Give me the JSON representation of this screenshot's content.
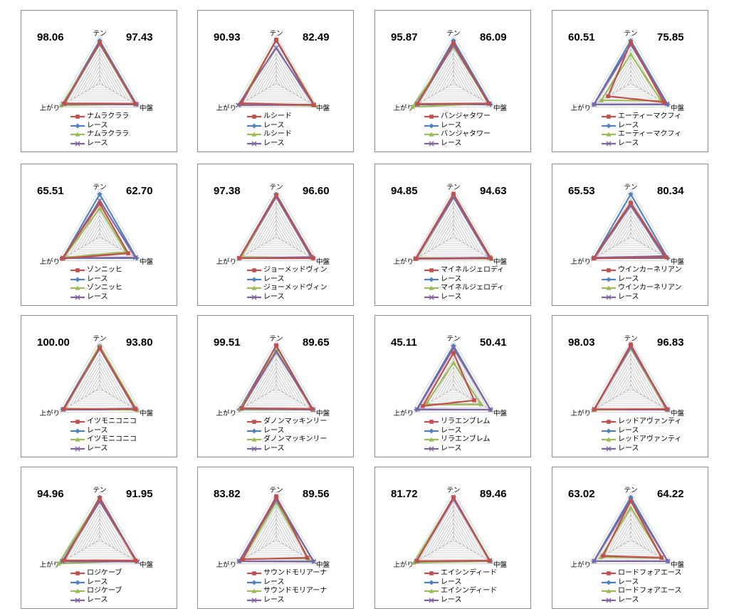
{
  "legend_colors": [
    "#c0504d",
    "#4f81bd",
    "#9bbb59",
    "#8064a2"
  ],
  "chart_data": [
    {
      "type": "radar",
      "axes": [
        "テン",
        "中盤",
        "上がり"
      ],
      "score_left": "98.06",
      "score_right": "97.43",
      "legend": [
        "ナムラクララ",
        "レース",
        "ナムラクララ",
        "レース"
      ],
      "series": [
        {
          "name": "ナムラクララ",
          "values": [
            9.6,
            9.6,
            9.5
          ]
        },
        {
          "name": "レース",
          "values": [
            10,
            10,
            10
          ]
        },
        {
          "name": "ナムラクララ",
          "values": [
            9.1,
            9.7,
            10.4
          ]
        },
        {
          "name": "レース",
          "values": [
            9.3,
            9.9,
            9.8
          ]
        }
      ]
    },
    {
      "type": "radar",
      "axes": [
        "テン",
        "中盤",
        "上がり"
      ],
      "score_left": "90.93",
      "score_right": "82.49",
      "legend": [
        "ルシード",
        "レース",
        "ルシード",
        "レース"
      ],
      "series": [
        {
          "name": "ルシード",
          "values": [
            10.2,
            10.2,
            9.4
          ]
        },
        {
          "name": "レース",
          "values": [
            10,
            10,
            10
          ]
        },
        {
          "name": "ルシード",
          "values": [
            10.2,
            10.5,
            10.0
          ]
        },
        {
          "name": "レース",
          "values": [
            8.3,
            10.1,
            10.3
          ]
        }
      ]
    },
    {
      "type": "radar",
      "axes": [
        "テン",
        "中盤",
        "上がり"
      ],
      "score_left": "95.87",
      "score_right": "86.09",
      "legend": [
        "バンジャタワー",
        "レース",
        "バンジャタワー",
        "レース"
      ],
      "series": [
        {
          "name": "バンジャタワー",
          "values": [
            9.4,
            9.5,
            9.7
          ]
        },
        {
          "name": "レース",
          "values": [
            10,
            10,
            10
          ]
        },
        {
          "name": "バンジャタワー",
          "values": [
            8.6,
            9.5,
            11.1
          ]
        },
        {
          "name": "レース",
          "values": [
            8.9,
            9.7,
            9.8
          ]
        }
      ]
    },
    {
      "type": "radar",
      "axes": [
        "テン",
        "中盤",
        "上がり"
      ],
      "score_left": "60.51",
      "score_right": "75.85",
      "legend": [
        "エーティーマクフィ",
        "レース",
        "エーティーマクフィ",
        "レース"
      ],
      "series": [
        {
          "name": "エーティーマクフィ",
          "values": [
            9.6,
            8.9,
            6.1
          ]
        },
        {
          "name": "レース",
          "values": [
            10,
            10,
            10
          ]
        },
        {
          "name": "エーティーマクフィ",
          "values": [
            6.8,
            8.2,
            8.0
          ]
        },
        {
          "name": "レース",
          "values": [
            9.1,
            9.8,
            9.9
          ]
        }
      ]
    },
    {
      "type": "radar",
      "axes": [
        "テン",
        "中盤",
        "上がり"
      ],
      "score_left": "65.51",
      "score_right": "62.70",
      "legend": [
        "ゾンニッヒ",
        "レース",
        "ゾンニッヒ",
        "レース"
      ],
      "series": [
        {
          "name": "ゾンニッヒ",
          "values": [
            7.8,
            7.7,
            10.2
          ]
        },
        {
          "name": "レース",
          "values": [
            10,
            10,
            10
          ]
        },
        {
          "name": "ゾンニッヒ",
          "values": [
            6.7,
            7.1,
            9.7
          ]
        },
        {
          "name": "レース",
          "values": [
            8.5,
            9.7,
            9.9
          ]
        }
      ]
    },
    {
      "type": "radar",
      "axes": [
        "テン",
        "中盤",
        "上がり"
      ],
      "score_left": "97.38",
      "score_right": "96.60",
      "legend": [
        "ジョーメッドヴィン",
        "レース",
        "ジョーメッドヴィン",
        "レース"
      ],
      "series": [
        {
          "name": "ジョーメッドヴィン",
          "values": [
            9.8,
            10.0,
            10.0
          ]
        },
        {
          "name": "レース",
          "values": [
            10,
            10,
            10
          ]
        },
        {
          "name": "ジョーメッドヴィン",
          "values": [
            9.6,
            9.9,
            9.5
          ]
        },
        {
          "name": "レース",
          "values": [
            9.4,
            9.5,
            10.0
          ]
        }
      ]
    },
    {
      "type": "radar",
      "axes": [
        "テン",
        "中盤",
        "上がり"
      ],
      "score_left": "94.85",
      "score_right": "94.63",
      "legend": [
        "マイネルジェロディ",
        "レース",
        "マイネルジェロディ",
        "レース"
      ],
      "series": [
        {
          "name": "マイネルジェロディ",
          "values": [
            10.1,
            10.1,
            10.3
          ]
        },
        {
          "name": "レース",
          "values": [
            10,
            10,
            10
          ]
        },
        {
          "name": "マイネルジェロディ",
          "values": [
            9.5,
            10.3,
            9.8
          ]
        },
        {
          "name": "レース",
          "values": [
            9.3,
            9.7,
            10.1
          ]
        }
      ]
    },
    {
      "type": "radar",
      "axes": [
        "テン",
        "中盤",
        "上がり"
      ],
      "score_left": "65.53",
      "score_right": "80.34",
      "legend": [
        "ウインカーネリアン",
        "レース",
        "ウインカーネリアン",
        "レース"
      ],
      "series": [
        {
          "name": "ウインカーネリアン",
          "values": [
            8.0,
            9.6,
            10.1
          ]
        },
        {
          "name": "レース",
          "values": [
            10,
            10,
            10
          ]
        },
        {
          "name": "ウインカーネリアン",
          "values": [
            7.5,
            9.4,
            9.8
          ]
        },
        {
          "name": "レース",
          "values": [
            7.4,
            9.0,
            9.8
          ]
        }
      ]
    },
    {
      "type": "radar",
      "axes": [
        "テン",
        "中盤",
        "上がり"
      ],
      "score_left": "100.00",
      "score_right": "93.80",
      "legend": [
        "イツモニコニコ",
        "レース",
        "イツモニコニコ",
        "レース"
      ],
      "series": [
        {
          "name": "イツモニコニコ",
          "values": [
            9.5,
            9.7,
            9.7
          ]
        },
        {
          "name": "レース",
          "values": [
            10,
            10,
            10
          ]
        },
        {
          "name": "イツモニコニコ",
          "values": [
            10.0,
            10.1,
            9.5
          ]
        },
        {
          "name": "レース",
          "values": [
            9.4,
            9.5,
            9.9
          ]
        }
      ]
    },
    {
      "type": "radar",
      "axes": [
        "テン",
        "中盤",
        "上がり"
      ],
      "score_left": "99.51",
      "score_right": "89.65",
      "legend": [
        "ダノンマッキンリー",
        "レース",
        "ダノンマッキンリー",
        "レース"
      ],
      "series": [
        {
          "name": "ダノンマッキンリー",
          "values": [
            10.1,
            9.6,
            9.3
          ]
        },
        {
          "name": "レース",
          "values": [
            10,
            10,
            10
          ]
        },
        {
          "name": "ダノンマッキンリー",
          "values": [
            9.0,
            10.0,
            9.8
          ]
        },
        {
          "name": "レース",
          "values": [
            8.6,
            10.0,
            9.4
          ]
        }
      ]
    },
    {
      "type": "radar",
      "axes": [
        "テン",
        "中盤",
        "上がり"
      ],
      "score_left": "45.11",
      "score_right": "50.41",
      "legend": [
        "リラエンブレム",
        "レース",
        "リラエンブレム",
        "レース"
      ],
      "series": [
        {
          "name": "リラエンブレム",
          "values": [
            8.3,
            5.6,
            8.3
          ]
        },
        {
          "name": "レース",
          "values": [
            10,
            10,
            10
          ]
        },
        {
          "name": "リラエンブレム",
          "values": [
            6.0,
            7.5,
            7.5
          ]
        },
        {
          "name": "レース",
          "values": [
            9.5,
            10.0,
            9.8
          ]
        }
      ]
    },
    {
      "type": "radar",
      "axes": [
        "テン",
        "中盤",
        "上がり"
      ],
      "score_left": "98.03",
      "score_right": "96.83",
      "legend": [
        "レッドアヴァンティ",
        "レース",
        "レッドアヴァンティ",
        "レース"
      ],
      "series": [
        {
          "name": "レッドアヴァンティ",
          "values": [
            10.3,
            9.7,
            9.8
          ]
        },
        {
          "name": "レース",
          "values": [
            10,
            10,
            10
          ]
        },
        {
          "name": "レッドアヴァンティ",
          "values": [
            9.5,
            9.6,
            10.1
          ]
        },
        {
          "name": "レース",
          "values": [
            9.7,
            10.0,
            9.8
          ]
        }
      ]
    },
    {
      "type": "radar",
      "axes": [
        "テン",
        "中盤",
        "上がり"
      ],
      "score_left": "94.96",
      "score_right": "91.95",
      "legend": [
        "ロジケーブ",
        "レース",
        "ロジケーブ",
        "レース"
      ],
      "series": [
        {
          "name": "ロジケーブ",
          "values": [
            9.8,
            9.7,
            9.6
          ]
        },
        {
          "name": "レース",
          "values": [
            10,
            10,
            10
          ]
        },
        {
          "name": "ロジケーブ",
          "values": [
            9.7,
            9.8,
            11.1
          ]
        },
        {
          "name": "レース",
          "values": [
            9.0,
            10.2,
            10.1
          ]
        }
      ]
    },
    {
      "type": "radar",
      "axes": [
        "テン",
        "中盤",
        "上がり"
      ],
      "score_left": "83.82",
      "score_right": "89.56",
      "legend": [
        "サウンドモリアーナ",
        "レース",
        "サウンドモリアーナ",
        "レース"
      ],
      "series": [
        {
          "name": "サウンドモリアーナ",
          "values": [
            10.2,
            8.4,
            9.1
          ]
        },
        {
          "name": "レース",
          "values": [
            10,
            10,
            10
          ]
        },
        {
          "name": "サウンドモリアーナ",
          "values": [
            8.8,
            8.8,
            8.9
          ]
        },
        {
          "name": "レース",
          "values": [
            9.4,
            10.2,
            10.0
          ]
        }
      ]
    },
    {
      "type": "radar",
      "axes": [
        "テン",
        "中盤",
        "上がり"
      ],
      "score_left": "81.72",
      "score_right": "89.46",
      "legend": [
        "エイシンディード",
        "レース",
        "エイシンディード",
        "レース"
      ],
      "series": [
        {
          "name": "エイシンディード",
          "values": [
            10.0,
            9.7,
            9.9
          ]
        },
        {
          "name": "レース",
          "values": [
            10,
            10,
            10
          ]
        },
        {
          "name": "エイシンディード",
          "values": [
            9.9,
            10.0,
            10.7
          ]
        },
        {
          "name": "レース",
          "values": [
            9.6,
            9.8,
            10.0
          ]
        }
      ]
    },
    {
      "type": "radar",
      "axes": [
        "テン",
        "中盤",
        "上がり"
      ],
      "score_left": "63.02",
      "score_right": "64.22",
      "legend": [
        "ロードフォアエース",
        "レース",
        "ロードフォアエース",
        "レース"
      ],
      "series": [
        {
          "name": "ロードフォアエース",
          "values": [
            9.1,
            8.3,
            7.5
          ]
        },
        {
          "name": "レース",
          "values": [
            10,
            10,
            10
          ]
        },
        {
          "name": "ロードフォアエース",
          "values": [
            7.6,
            8.5,
            8.1
          ]
        },
        {
          "name": "レース",
          "values": [
            9.3,
            10.0,
            9.9
          ]
        }
      ]
    }
  ]
}
